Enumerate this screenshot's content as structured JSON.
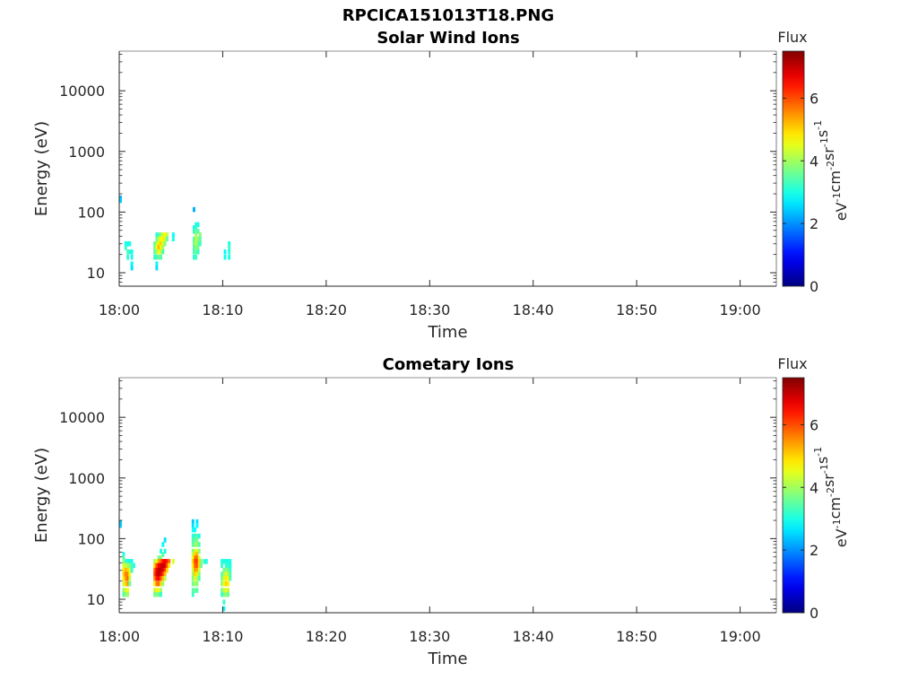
{
  "figure": {
    "title": "RPCICA151013T18.PNG"
  },
  "colors": {
    "axis": "#262626",
    "colormap": "jet"
  },
  "chart_data": [
    {
      "type": "heatmap",
      "title": "Solar Wind Ions",
      "xlabel": "Time",
      "ylabel": "Energy (eV)",
      "x_tick_labels": [
        "18:00",
        "18:10",
        "18:20",
        "18:30",
        "18:40",
        "18:50",
        "19:00"
      ],
      "x_range_minutes": [
        0,
        63.5
      ],
      "y_tick_labels": [
        "10",
        "100",
        "1000",
        "10000"
      ],
      "y_scale": "log",
      "y_range": [
        6,
        45000
      ],
      "colorbar": {
        "label_top": "Flux",
        "unit": "eV^-1 cm^-2 sr^-1 s^-1",
        "tick_labels": [
          "0",
          "2",
          "4",
          "6"
        ],
        "range": [
          0,
          7.5
        ]
      },
      "cells": [
        [
          0.0,
          170,
          2.3
        ],
        [
          0.0,
          155,
          2.5
        ],
        [
          0.5,
          30,
          3.0
        ],
        [
          0.5,
          26,
          3.2
        ],
        [
          0.7,
          30,
          2.9
        ],
        [
          0.7,
          22,
          3.3
        ],
        [
          0.7,
          18,
          3.1
        ],
        [
          0.9,
          30,
          3.0
        ],
        [
          0.9,
          22,
          3.2
        ],
        [
          1.1,
          22,
          2.9
        ],
        [
          1.1,
          18,
          3.0
        ],
        [
          1.1,
          14,
          2.8
        ],
        [
          1.1,
          12,
          2.6
        ],
        [
          3.3,
          30,
          3.5
        ],
        [
          3.3,
          26,
          3.6
        ],
        [
          3.3,
          22,
          3.4
        ],
        [
          3.3,
          18,
          3.2
        ],
        [
          3.5,
          42,
          3.0
        ],
        [
          3.5,
          36,
          3.6
        ],
        [
          3.5,
          30,
          4.2
        ],
        [
          3.5,
          26,
          4.6
        ],
        [
          3.5,
          22,
          4.0
        ],
        [
          3.5,
          18,
          3.3
        ],
        [
          3.5,
          14,
          2.8
        ],
        [
          3.5,
          12,
          2.6
        ],
        [
          3.7,
          42,
          3.4
        ],
        [
          3.7,
          36,
          4.2
        ],
        [
          3.7,
          30,
          4.8
        ],
        [
          3.7,
          26,
          5.2
        ],
        [
          3.7,
          22,
          4.6
        ],
        [
          3.7,
          18,
          3.6
        ],
        [
          3.9,
          42,
          3.8
        ],
        [
          3.9,
          36,
          4.6
        ],
        [
          3.9,
          30,
          5.0
        ],
        [
          3.9,
          26,
          4.8
        ],
        [
          3.9,
          22,
          4.2
        ],
        [
          3.9,
          18,
          3.4
        ],
        [
          4.1,
          42,
          4.4
        ],
        [
          4.1,
          36,
          4.8
        ],
        [
          4.1,
          30,
          4.4
        ],
        [
          4.1,
          26,
          4.0
        ],
        [
          4.1,
          22,
          3.4
        ],
        [
          4.3,
          42,
          4.6
        ],
        [
          4.3,
          36,
          4.4
        ],
        [
          4.3,
          30,
          3.8
        ],
        [
          4.5,
          42,
          4.3
        ],
        [
          4.5,
          36,
          3.6
        ],
        [
          5.1,
          42,
          2.8
        ],
        [
          5.1,
          36,
          3.0
        ],
        [
          7.1,
          110,
          2.2
        ],
        [
          7.1,
          55,
          2.9
        ],
        [
          7.1,
          48,
          3.2
        ],
        [
          7.1,
          36,
          3.4
        ],
        [
          7.1,
          30,
          3.6
        ],
        [
          7.1,
          26,
          3.4
        ],
        [
          7.1,
          22,
          3.3
        ],
        [
          7.1,
          18,
          3.1
        ],
        [
          7.3,
          62,
          3.0
        ],
        [
          7.3,
          55,
          3.2
        ],
        [
          7.3,
          48,
          3.6
        ],
        [
          7.3,
          42,
          4.0
        ],
        [
          7.3,
          36,
          4.3
        ],
        [
          7.3,
          30,
          4.2
        ],
        [
          7.3,
          26,
          3.9
        ],
        [
          7.3,
          22,
          3.6
        ],
        [
          7.3,
          18,
          3.3
        ],
        [
          7.5,
          62,
          3.0
        ],
        [
          7.5,
          48,
          3.4
        ],
        [
          7.5,
          36,
          3.8
        ],
        [
          7.5,
          30,
          3.6
        ],
        [
          7.5,
          26,
          3.6
        ],
        [
          7.5,
          22,
          3.2
        ],
        [
          7.7,
          42,
          3.8
        ],
        [
          7.7,
          36,
          3.5
        ],
        [
          7.7,
          30,
          3.3
        ],
        [
          10.1,
          22,
          2.8
        ],
        [
          10.1,
          18,
          2.9
        ],
        [
          10.5,
          30,
          3.0
        ],
        [
          10.5,
          26,
          3.2
        ],
        [
          10.5,
          22,
          3.1
        ],
        [
          10.5,
          18,
          3.0
        ]
      ]
    },
    {
      "type": "heatmap",
      "title": "Cometary Ions",
      "xlabel": "Time",
      "ylabel": "Energy (eV)",
      "x_tick_labels": [
        "18:00",
        "18:10",
        "18:20",
        "18:30",
        "18:40",
        "18:50",
        "19:00"
      ],
      "x_range_minutes": [
        0,
        63.5
      ],
      "y_tick_labels": [
        "10",
        "100",
        "1000",
        "10000"
      ],
      "y_scale": "log",
      "y_range": [
        6,
        45000
      ],
      "colorbar": {
        "label_top": "Flux",
        "unit": "eV^-1 cm^-2 sr^-1 s^-1",
        "tick_labels": [
          "0",
          "2",
          "4",
          "6"
        ],
        "range": [
          0,
          7.5
        ]
      },
      "cells": [
        [
          0.0,
          180,
          2.4
        ],
        [
          0.0,
          165,
          2.5
        ],
        [
          0.3,
          55,
          3.0
        ],
        [
          0.3,
          48,
          3.4
        ],
        [
          0.3,
          42,
          3.8
        ],
        [
          0.3,
          36,
          4.3
        ],
        [
          0.3,
          30,
          4.8
        ],
        [
          0.3,
          26,
          5.0
        ],
        [
          0.3,
          22,
          4.8
        ],
        [
          0.3,
          18,
          4.3
        ],
        [
          0.3,
          14,
          3.8
        ],
        [
          0.3,
          12,
          3.4
        ],
        [
          0.5,
          42,
          3.2
        ],
        [
          0.5,
          36,
          4.4
        ],
        [
          0.5,
          30,
          5.2
        ],
        [
          0.5,
          26,
          5.6
        ],
        [
          0.5,
          22,
          5.4
        ],
        [
          0.5,
          18,
          5.0
        ],
        [
          0.5,
          14,
          4.4
        ],
        [
          0.5,
          12,
          3.8
        ],
        [
          0.7,
          42,
          3.0
        ],
        [
          0.7,
          36,
          4.0
        ],
        [
          0.7,
          30,
          5.0
        ],
        [
          0.7,
          26,
          5.6
        ],
        [
          0.7,
          22,
          5.8
        ],
        [
          0.7,
          18,
          5.4
        ],
        [
          0.7,
          14,
          4.6
        ],
        [
          0.7,
          12,
          4.0
        ],
        [
          0.9,
          42,
          3.0
        ],
        [
          0.9,
          36,
          3.8
        ],
        [
          0.9,
          30,
          4.4
        ],
        [
          0.9,
          26,
          4.6
        ],
        [
          0.9,
          22,
          4.2
        ],
        [
          0.9,
          18,
          3.6
        ],
        [
          1.1,
          42,
          3.0
        ],
        [
          1.1,
          36,
          3.4
        ],
        [
          1.1,
          30,
          3.2
        ],
        [
          1.3,
          36,
          3.0
        ],
        [
          3.3,
          42,
          4.0
        ],
        [
          3.3,
          36,
          5.0
        ],
        [
          3.3,
          30,
          5.8
        ],
        [
          3.3,
          26,
          6.0
        ],
        [
          3.3,
          22,
          5.6
        ],
        [
          3.3,
          18,
          4.8
        ],
        [
          3.3,
          14,
          4.2
        ],
        [
          3.3,
          12,
          3.6
        ],
        [
          3.5,
          42,
          4.6
        ],
        [
          3.5,
          36,
          6.0
        ],
        [
          3.5,
          30,
          6.6
        ],
        [
          3.5,
          26,
          6.8
        ],
        [
          3.5,
          22,
          6.4
        ],
        [
          3.5,
          18,
          5.6
        ],
        [
          3.5,
          14,
          4.8
        ],
        [
          3.5,
          12,
          3.8
        ],
        [
          3.7,
          48,
          3.6
        ],
        [
          3.7,
          42,
          5.4
        ],
        [
          3.7,
          36,
          6.6
        ],
        [
          3.7,
          30,
          7.0
        ],
        [
          3.7,
          26,
          7.0
        ],
        [
          3.7,
          22,
          6.6
        ],
        [
          3.7,
          18,
          5.8
        ],
        [
          3.7,
          14,
          4.6
        ],
        [
          3.7,
          12,
          3.6
        ],
        [
          3.9,
          62,
          3.0
        ],
        [
          3.9,
          48,
          3.8
        ],
        [
          3.9,
          42,
          5.8
        ],
        [
          3.9,
          36,
          6.8
        ],
        [
          3.9,
          30,
          7.0
        ],
        [
          3.9,
          26,
          6.8
        ],
        [
          3.9,
          22,
          6.0
        ],
        [
          3.9,
          18,
          5.0
        ],
        [
          3.9,
          14,
          4.0
        ],
        [
          3.9,
          12,
          3.2
        ],
        [
          4.1,
          80,
          2.8
        ],
        [
          4.1,
          55,
          3.4
        ],
        [
          4.1,
          42,
          6.4
        ],
        [
          4.1,
          36,
          7.0
        ],
        [
          4.1,
          30,
          6.8
        ],
        [
          4.1,
          26,
          6.2
        ],
        [
          4.1,
          22,
          5.2
        ],
        [
          4.1,
          18,
          4.0
        ],
        [
          4.3,
          95,
          2.6
        ],
        [
          4.3,
          62,
          3.0
        ],
        [
          4.3,
          42,
          6.6
        ],
        [
          4.3,
          36,
          6.8
        ],
        [
          4.3,
          30,
          6.2
        ],
        [
          4.3,
          26,
          5.2
        ],
        [
          4.3,
          22,
          4.2
        ],
        [
          4.5,
          42,
          6.4
        ],
        [
          4.5,
          36,
          6.0
        ],
        [
          4.5,
          30,
          5.0
        ],
        [
          4.7,
          42,
          5.8
        ],
        [
          4.7,
          36,
          4.8
        ],
        [
          5.1,
          42,
          4.4
        ],
        [
          7.0,
          190,
          2.4
        ],
        [
          7.0,
          165,
          2.6
        ],
        [
          7.0,
          140,
          2.9
        ],
        [
          7.0,
          110,
          3.1
        ],
        [
          7.0,
          95,
          3.3
        ],
        [
          7.0,
          80,
          3.5
        ],
        [
          7.0,
          62,
          3.7
        ],
        [
          7.0,
          55,
          4.2
        ],
        [
          7.0,
          48,
          4.6
        ],
        [
          7.0,
          42,
          5.0
        ],
        [
          7.0,
          36,
          4.8
        ],
        [
          7.0,
          30,
          4.4
        ],
        [
          7.0,
          26,
          4.0
        ],
        [
          7.0,
          22,
          3.8
        ],
        [
          7.0,
          18,
          3.6
        ],
        [
          7.0,
          14,
          3.4
        ],
        [
          7.0,
          12,
          3.2
        ],
        [
          7.2,
          140,
          2.8
        ],
        [
          7.2,
          110,
          3.2
        ],
        [
          7.2,
          95,
          3.5
        ],
        [
          7.2,
          80,
          3.8
        ],
        [
          7.2,
          62,
          4.4
        ],
        [
          7.2,
          55,
          5.0
        ],
        [
          7.2,
          48,
          5.6
        ],
        [
          7.2,
          42,
          6.0
        ],
        [
          7.2,
          36,
          5.8
        ],
        [
          7.2,
          30,
          5.4
        ],
        [
          7.2,
          26,
          5.0
        ],
        [
          7.2,
          22,
          4.4
        ],
        [
          7.2,
          18,
          4.0
        ],
        [
          7.2,
          14,
          3.6
        ],
        [
          7.4,
          190,
          2.6
        ],
        [
          7.4,
          165,
          2.8
        ],
        [
          7.4,
          110,
          3.4
        ],
        [
          7.4,
          95,
          3.7
        ],
        [
          7.4,
          80,
          4.0
        ],
        [
          7.4,
          62,
          4.6
        ],
        [
          7.4,
          55,
          5.2
        ],
        [
          7.4,
          48,
          5.8
        ],
        [
          7.4,
          42,
          6.2
        ],
        [
          7.4,
          36,
          6.0
        ],
        [
          7.4,
          30,
          5.4
        ],
        [
          7.4,
          26,
          4.8
        ],
        [
          7.4,
          22,
          4.2
        ],
        [
          7.4,
          18,
          3.8
        ],
        [
          7.4,
          14,
          3.4
        ],
        [
          7.6,
          110,
          3.0
        ],
        [
          7.6,
          80,
          3.4
        ],
        [
          7.6,
          62,
          3.8
        ],
        [
          7.6,
          48,
          4.4
        ],
        [
          7.6,
          42,
          5.0
        ],
        [
          7.6,
          36,
          5.0
        ],
        [
          7.6,
          30,
          4.4
        ],
        [
          7.6,
          26,
          3.8
        ],
        [
          7.6,
          22,
          3.4
        ],
        [
          7.8,
          42,
          3.8
        ],
        [
          7.8,
          36,
          3.6
        ],
        [
          8.1,
          42,
          3.2
        ],
        [
          8.3,
          42,
          3.0
        ],
        [
          9.8,
          42,
          3.0
        ],
        [
          9.8,
          36,
          3.2
        ],
        [
          9.8,
          26,
          3.4
        ],
        [
          9.8,
          22,
          3.6
        ],
        [
          9.8,
          18,
          3.8
        ],
        [
          9.8,
          14,
          3.6
        ],
        [
          9.8,
          12,
          3.2
        ],
        [
          10.0,
          42,
          3.0
        ],
        [
          10.0,
          30,
          3.6
        ],
        [
          10.0,
          26,
          4.0
        ],
        [
          10.0,
          22,
          4.4
        ],
        [
          10.0,
          18,
          4.6
        ],
        [
          10.0,
          14,
          4.2
        ],
        [
          10.0,
          12,
          3.6
        ],
        [
          10.0,
          9,
          3.2
        ],
        [
          10.0,
          7,
          2.8
        ],
        [
          10.2,
          42,
          3.0
        ],
        [
          10.2,
          36,
          3.2
        ],
        [
          10.2,
          30,
          3.8
        ],
        [
          10.2,
          26,
          4.4
        ],
        [
          10.2,
          22,
          4.8
        ],
        [
          10.2,
          18,
          5.0
        ],
        [
          10.2,
          14,
          4.6
        ],
        [
          10.2,
          12,
          4.0
        ],
        [
          10.4,
          42,
          3.0
        ],
        [
          10.4,
          36,
          3.2
        ],
        [
          10.4,
          30,
          3.6
        ],
        [
          10.4,
          26,
          4.2
        ],
        [
          10.4,
          22,
          4.6
        ],
        [
          10.4,
          18,
          4.8
        ],
        [
          10.4,
          14,
          4.2
        ],
        [
          10.4,
          12,
          3.6
        ],
        [
          10.6,
          42,
          3.0
        ],
        [
          10.6,
          36,
          3.0
        ],
        [
          10.6,
          30,
          3.2
        ],
        [
          10.6,
          26,
          3.4
        ],
        [
          10.6,
          22,
          3.4
        ]
      ]
    }
  ]
}
